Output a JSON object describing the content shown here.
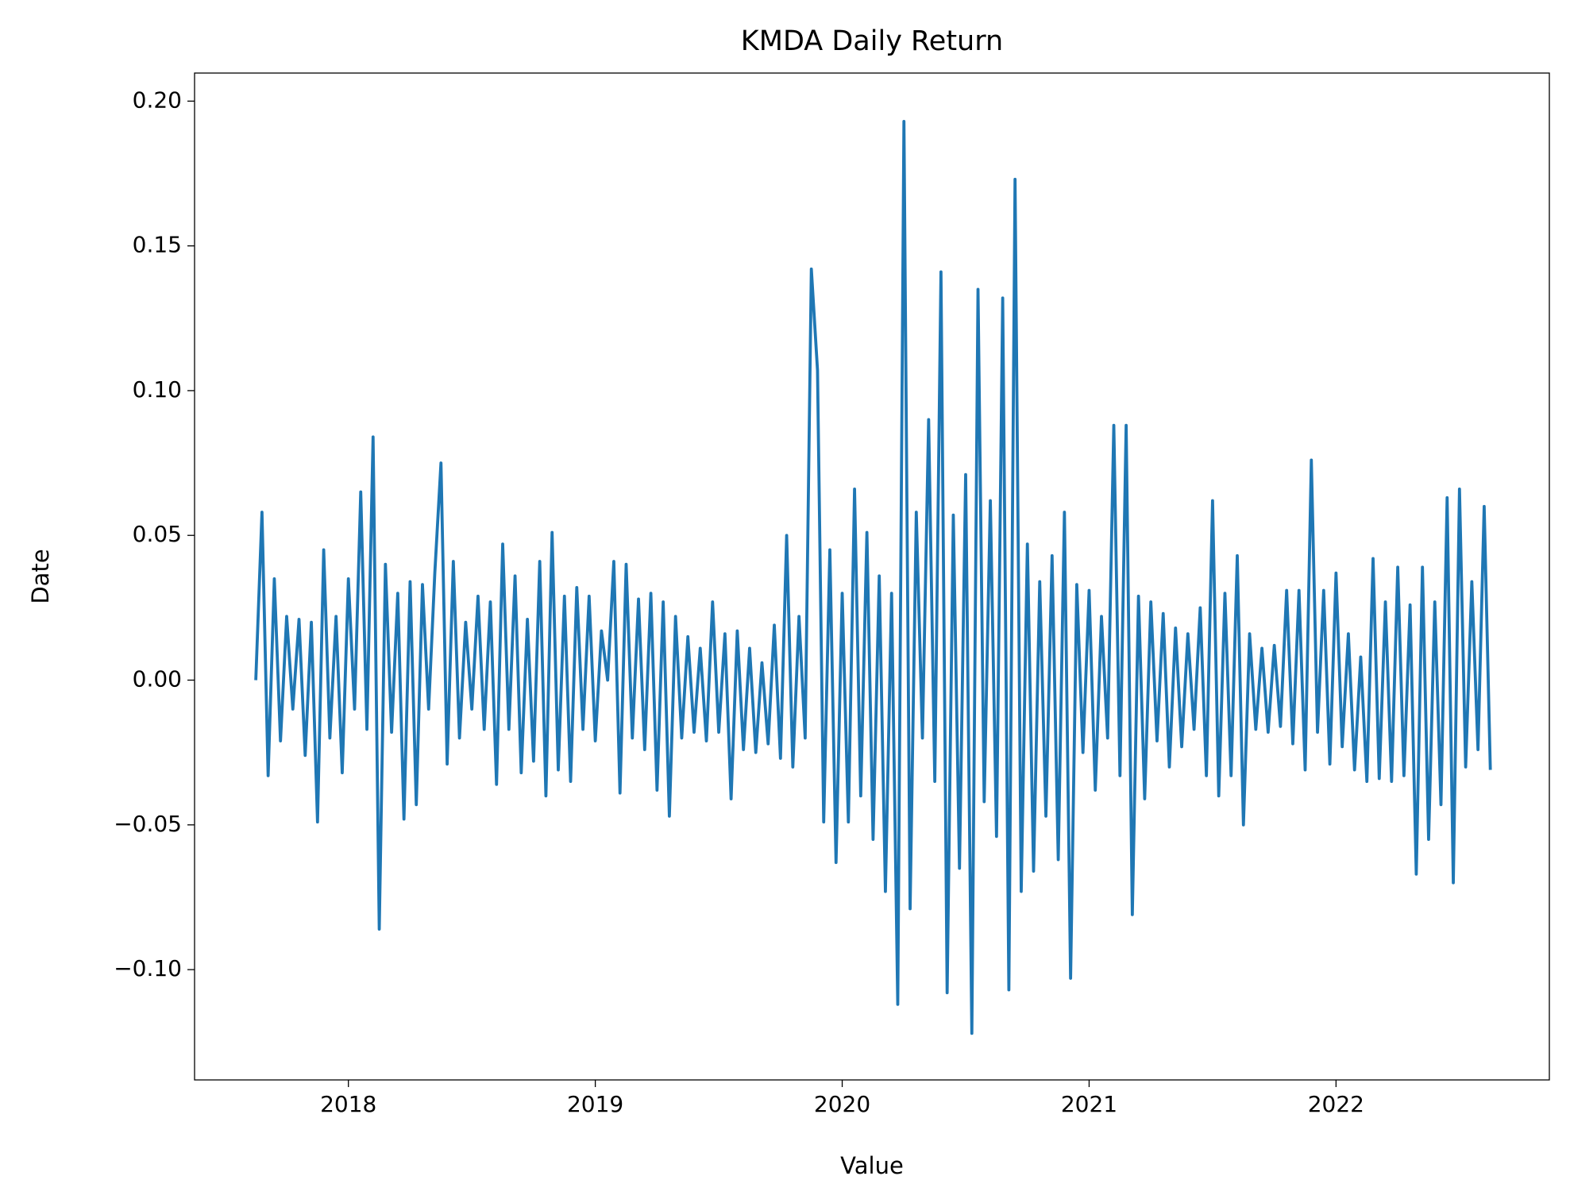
{
  "chart_data": {
    "type": "line",
    "title": "KMDA Daily Return",
    "x_label": "Value",
    "y_label": "Date",
    "color": "#1f77b4",
    "xlim": [
      2017.377,
      2022.864
    ],
    "xticks": [
      2018,
      2019,
      2020,
      2021,
      2022
    ],
    "ylim": [
      -0.1381,
      0.2097
    ],
    "yticks": [
      {
        "value": -0.1,
        "label": "−0.10"
      },
      {
        "value": -0.05,
        "label": "−0.05"
      },
      {
        "value": 0,
        "label": "0.00"
      },
      {
        "value": 0.05,
        "label": "0.05"
      },
      {
        "value": 0.1,
        "label": "0.10"
      },
      {
        "value": 0.15,
        "label": "0.15"
      },
      {
        "value": 0.2,
        "label": "0.20"
      }
    ],
    "x": [
      2017.625,
      2017.65,
      2017.675,
      2017.7,
      2017.725,
      2017.75,
      2017.775,
      2017.8,
      2017.825,
      2017.85,
      2017.875,
      2017.9,
      2017.925,
      2017.95,
      2017.975,
      2018.0,
      2018.025,
      2018.05,
      2018.075,
      2018.1,
      2018.125,
      2018.15,
      2018.175,
      2018.2,
      2018.225,
      2018.25,
      2018.275,
      2018.3,
      2018.325,
      2018.35,
      2018.375,
      2018.4,
      2018.425,
      2018.45,
      2018.475,
      2018.5,
      2018.525,
      2018.55,
      2018.575,
      2018.6,
      2018.625,
      2018.65,
      2018.675,
      2018.7,
      2018.725,
      2018.75,
      2018.775,
      2018.8,
      2018.825,
      2018.85,
      2018.875,
      2018.9,
      2018.925,
      2018.95,
      2018.975,
      2019.0,
      2019.025,
      2019.05,
      2019.075,
      2019.1,
      2019.125,
      2019.15,
      2019.175,
      2019.2,
      2019.225,
      2019.25,
      2019.275,
      2019.3,
      2019.325,
      2019.35,
      2019.375,
      2019.4,
      2019.425,
      2019.45,
      2019.475,
      2019.5,
      2019.525,
      2019.55,
      2019.575,
      2019.6,
      2019.625,
      2019.65,
      2019.675,
      2019.7,
      2019.725,
      2019.75,
      2019.775,
      2019.8,
      2019.825,
      2019.85,
      2019.875,
      2019.9,
      2019.925,
      2019.95,
      2019.975,
      2020.0,
      2020.025,
      2020.05,
      2020.075,
      2020.1,
      2020.125,
      2020.15,
      2020.175,
      2020.2,
      2020.225,
      2020.25,
      2020.275,
      2020.3,
      2020.325,
      2020.35,
      2020.375,
      2020.4,
      2020.425,
      2020.45,
      2020.475,
      2020.5,
      2020.525,
      2020.55,
      2020.575,
      2020.6,
      2020.625,
      2020.65,
      2020.675,
      2020.7,
      2020.725,
      2020.75,
      2020.775,
      2020.8,
      2020.825,
      2020.85,
      2020.875,
      2020.9,
      2020.925,
      2020.95,
      2020.975,
      2021.0,
      2021.025,
      2021.05,
      2021.075,
      2021.1,
      2021.125,
      2021.15,
      2021.175,
      2021.2,
      2021.225,
      2021.25,
      2021.275,
      2021.3,
      2021.325,
      2021.35,
      2021.375,
      2021.4,
      2021.425,
      2021.45,
      2021.475,
      2021.5,
      2021.525,
      2021.55,
      2021.575,
      2021.6,
      2021.625,
      2021.65,
      2021.675,
      2021.7,
      2021.725,
      2021.75,
      2021.775,
      2021.8,
      2021.825,
      2021.85,
      2021.875,
      2021.9,
      2021.925,
      2021.95,
      2021.975,
      2022.0,
      2022.025,
      2022.05,
      2022.075,
      2022.1,
      2022.125,
      2022.15,
      2022.175,
      2022.2,
      2022.225,
      2022.25,
      2022.275,
      2022.3,
      2022.325,
      2022.35,
      2022.375,
      2022.4,
      2022.425,
      2022.45,
      2022.475,
      2022.5,
      2022.525,
      2022.55,
      2022.575,
      2022.6,
      2022.625
    ],
    "values": [
      0.0,
      0.058,
      -0.033,
      0.035,
      -0.021,
      0.022,
      -0.01,
      0.021,
      -0.026,
      0.02,
      -0.049,
      0.045,
      -0.02,
      0.022,
      -0.032,
      0.035,
      -0.01,
      0.065,
      -0.017,
      0.084,
      -0.086,
      0.04,
      -0.018,
      0.03,
      -0.048,
      0.034,
      -0.043,
      0.033,
      -0.01,
      0.037,
      0.075,
      -0.029,
      0.041,
      -0.02,
      0.02,
      -0.01,
      0.029,
      -0.017,
      0.027,
      -0.036,
      0.047,
      -0.017,
      0.036,
      -0.032,
      0.021,
      -0.028,
      0.041,
      -0.04,
      0.051,
      -0.031,
      0.029,
      -0.035,
      0.032,
      -0.017,
      0.029,
      -0.021,
      0.017,
      0.0,
      0.041,
      -0.039,
      0.04,
      -0.02,
      0.028,
      -0.024,
      0.03,
      -0.038,
      0.027,
      -0.047,
      0.022,
      -0.02,
      0.015,
      -0.018,
      0.011,
      -0.021,
      0.027,
      -0.018,
      0.016,
      -0.041,
      0.017,
      -0.024,
      0.011,
      -0.025,
      0.006,
      -0.022,
      0.019,
      -0.027,
      0.05,
      -0.03,
      0.022,
      -0.02,
      0.142,
      0.107,
      -0.049,
      0.045,
      -0.063,
      0.03,
      -0.049,
      0.066,
      -0.04,
      0.051,
      -0.055,
      0.036,
      -0.073,
      0.03,
      -0.112,
      0.193,
      -0.079,
      0.058,
      -0.02,
      0.09,
      -0.035,
      0.141,
      -0.108,
      0.057,
      -0.065,
      0.071,
      -0.122,
      0.135,
      -0.042,
      0.062,
      -0.054,
      0.132,
      -0.107,
      0.173,
      -0.073,
      0.047,
      -0.066,
      0.034,
      -0.047,
      0.043,
      -0.062,
      0.058,
      -0.103,
      0.033,
      -0.025,
      0.031,
      -0.038,
      0.022,
      -0.02,
      0.088,
      -0.033,
      0.088,
      -0.081,
      0.029,
      -0.041,
      0.027,
      -0.021,
      0.023,
      -0.03,
      0.018,
      -0.023,
      0.016,
      -0.017,
      0.025,
      -0.033,
      0.062,
      -0.04,
      0.03,
      -0.033,
      0.043,
      -0.05,
      0.016,
      -0.017,
      0.011,
      -0.018,
      0.012,
      -0.016,
      0.031,
      -0.022,
      0.031,
      -0.031,
      0.076,
      -0.018,
      0.031,
      -0.029,
      0.037,
      -0.023,
      0.016,
      -0.031,
      0.008,
      -0.035,
      0.042,
      -0.034,
      0.027,
      -0.035,
      0.039,
      -0.033,
      0.026,
      -0.067,
      0.039,
      -0.055,
      0.027,
      -0.043,
      0.063,
      -0.07,
      0.066,
      -0.03,
      0.034,
      -0.024,
      0.06,
      -0.031
    ]
  }
}
